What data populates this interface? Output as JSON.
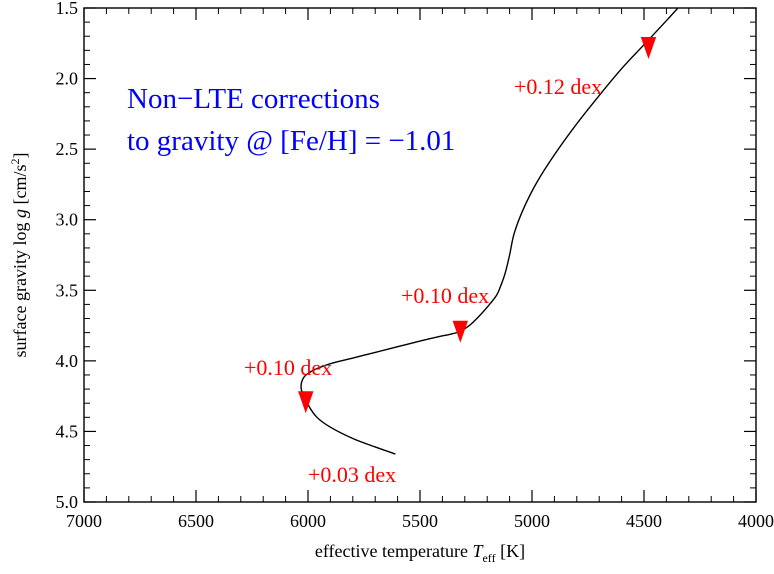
{
  "chart_data": {
    "type": "line",
    "title": "",
    "xlabel": "effective temperature T_eff [K]",
    "xlabel_parts": {
      "prefix": "effective temperature ",
      "symbol": "T",
      "subscript": "eff",
      "suffix": "  [K]"
    },
    "ylabel": "surface gravity log g [cm/s^2]",
    "ylabel_parts": {
      "prefix": "surface gravity log ",
      "symbol": "g",
      "middle": "  [cm/s",
      "superscript": "2",
      "suffix": "]"
    },
    "xlim": [
      7000,
      4000
    ],
    "ylim": [
      5.0,
      1.5
    ],
    "x_reversed": true,
    "y_reversed": true,
    "xticks": [
      7000,
      6500,
      6000,
      5500,
      5000,
      4500,
      4000
    ],
    "yticks": [
      1.5,
      2.0,
      2.5,
      3.0,
      3.5,
      4.0,
      4.5,
      5.0
    ],
    "xtick_labels": [
      "7000",
      "6500",
      "6000",
      "5500",
      "5000",
      "4500",
      "4000"
    ],
    "ytick_labels": [
      "1.5",
      "2.0",
      "2.5",
      "3.0",
      "3.5",
      "4.0",
      "4.5",
      "5.0"
    ],
    "grid": false,
    "series": [
      {
        "color": "#000000",
        "x": [
          5610,
          5700,
          5800,
          5900,
          5960,
          6000,
          6030,
          6020,
          5980,
          5900,
          5800,
          5700,
          5600,
          5500,
          5420,
          5360,
          5320,
          5280,
          5240,
          5200,
          5160,
          5140,
          5120,
          5100,
          5080,
          5040,
          4980,
          4900,
          4800,
          4700,
          4600,
          4500,
          4400,
          4320
        ],
        "y": [
          4.66,
          4.61,
          4.55,
          4.47,
          4.4,
          4.31,
          4.2,
          4.12,
          4.07,
          4.02,
          3.98,
          3.94,
          3.9,
          3.86,
          3.83,
          3.81,
          3.79,
          3.75,
          3.69,
          3.62,
          3.54,
          3.47,
          3.38,
          3.25,
          3.1,
          2.93,
          2.74,
          2.54,
          2.32,
          2.12,
          1.93,
          1.76,
          1.59,
          1.45
        ]
      }
    ],
    "markers": [
      {
        "x": 6010,
        "y": 4.29,
        "color": "#ff0000"
      },
      {
        "x": 5320,
        "y": 3.79,
        "color": "#ff0000"
      },
      {
        "x": 4480,
        "y": 1.78,
        "color": "#ff0000"
      }
    ],
    "annotations": [
      {
        "text": "Non−LTE corrections",
        "color": "#0000ff"
      },
      {
        "text": "to gravity @ [Fe/H] = −1.01",
        "color": "#0000ff"
      },
      {
        "text": "+0.12 dex",
        "color": "#ff0000"
      },
      {
        "text": "+0.10 dex",
        "color": "#ff0000"
      },
      {
        "text": "+0.10 dex",
        "color": "#ff0000"
      },
      {
        "text": "+0.03 dex",
        "color": "#ff0000"
      }
    ]
  }
}
